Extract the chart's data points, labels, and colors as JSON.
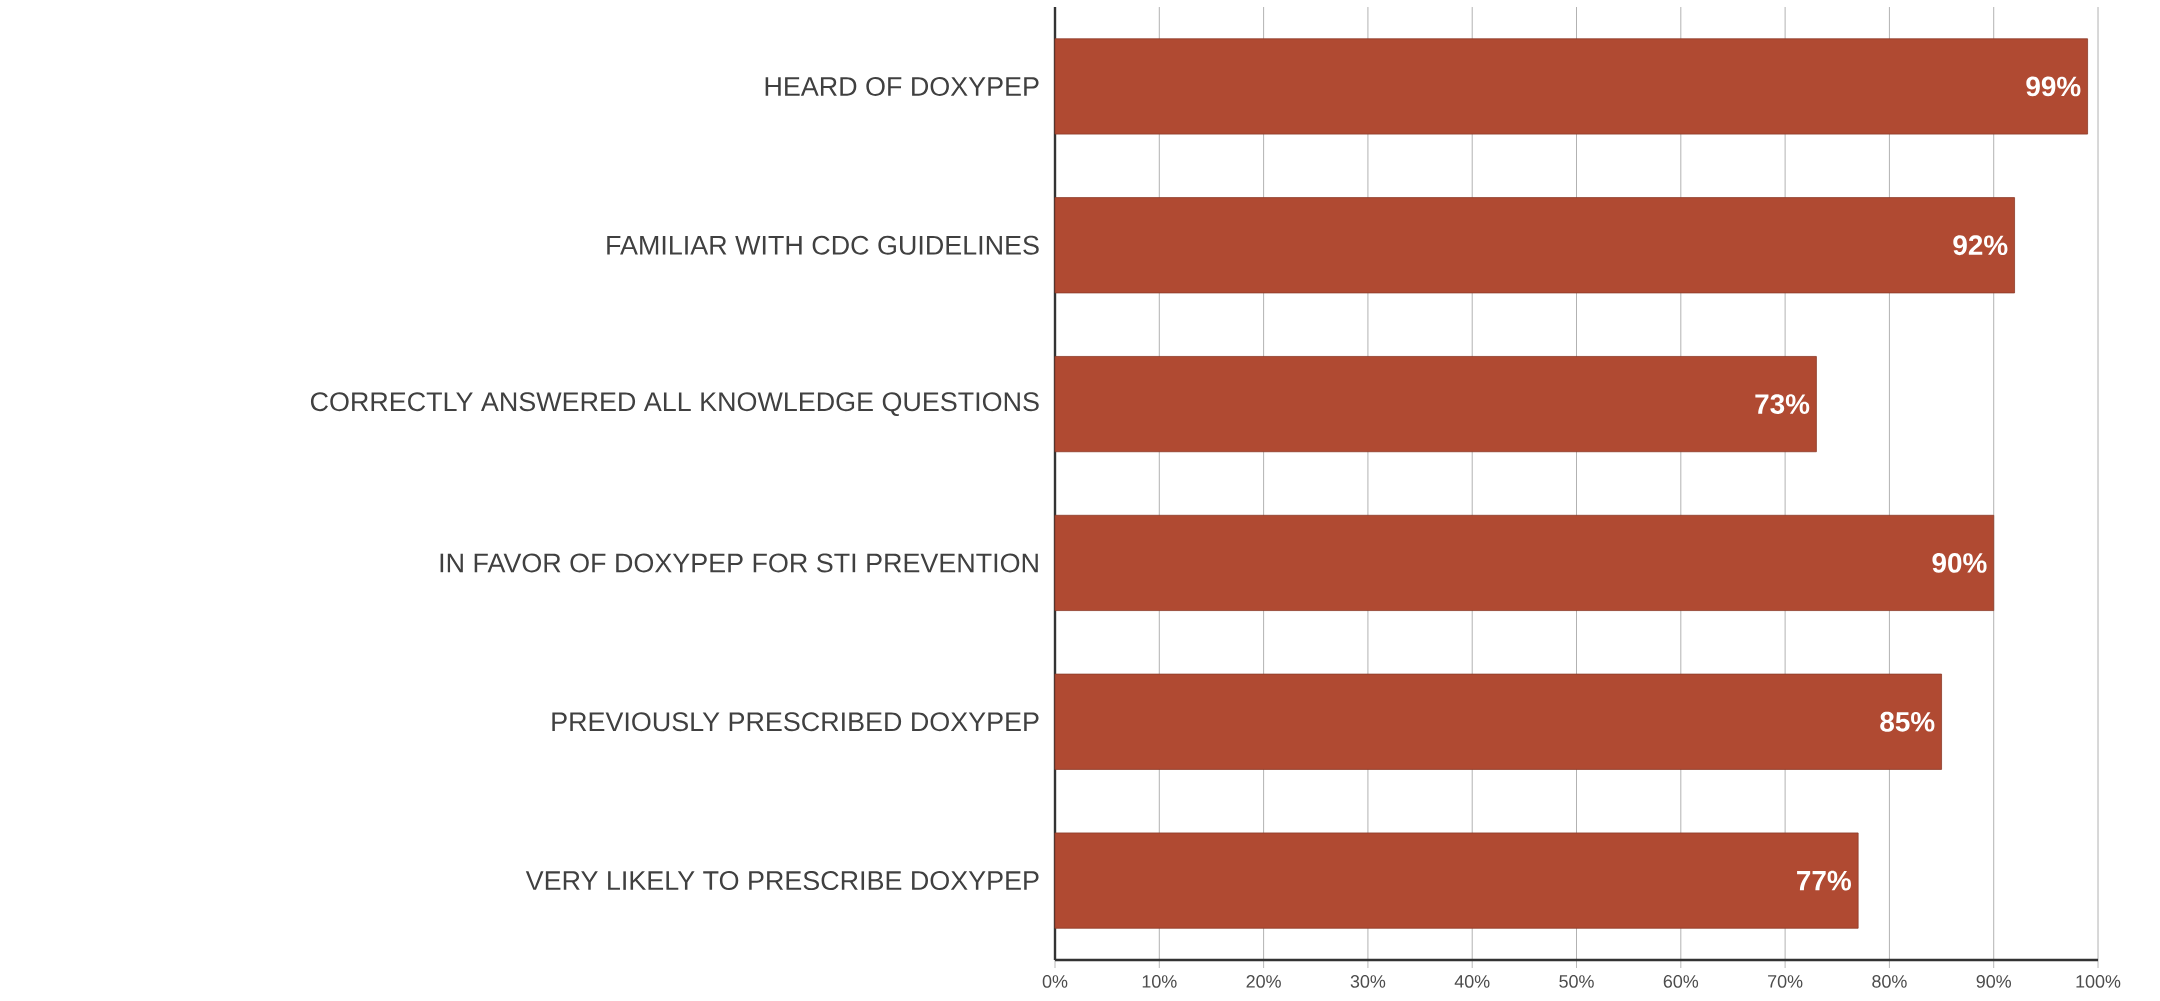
{
  "chart_data": {
    "type": "bar",
    "orientation": "horizontal",
    "categories": [
      "HEARD OF DOXYPEP",
      "FAMILIAR WITH CDC GUIDELINES",
      "CORRECTLY ANSWERED ALL KNOWLEDGE QUESTIONS",
      "IN FAVOR OF DOXYPEP FOR STI PREVENTION",
      "PREVIOUSLY PRESCRIBED DOXYPEP",
      "VERY LIKELY TO PRESCRIBE DOXYPEP"
    ],
    "values": [
      99,
      92,
      73,
      90,
      85,
      77
    ],
    "value_labels": [
      "99%",
      "92%",
      "73%",
      "90%",
      "85%",
      "77%"
    ],
    "color": "#b04a32",
    "xlim": [
      0,
      100
    ],
    "xticks": [
      {
        "value": 0,
        "label": "0%"
      },
      {
        "value": 10,
        "label": "10%"
      },
      {
        "value": 20,
        "label": "20%"
      },
      {
        "value": 30,
        "label": "30%"
      },
      {
        "value": 40,
        "label": "40%"
      },
      {
        "value": 50,
        "label": "50%"
      },
      {
        "value": 60,
        "label": "60%"
      },
      {
        "value": 70,
        "label": "70%"
      },
      {
        "value": 80,
        "label": "80%"
      },
      {
        "value": 90,
        "label": "90%"
      },
      {
        "value": 100,
        "label": "100%"
      }
    ],
    "grid": "x"
  }
}
